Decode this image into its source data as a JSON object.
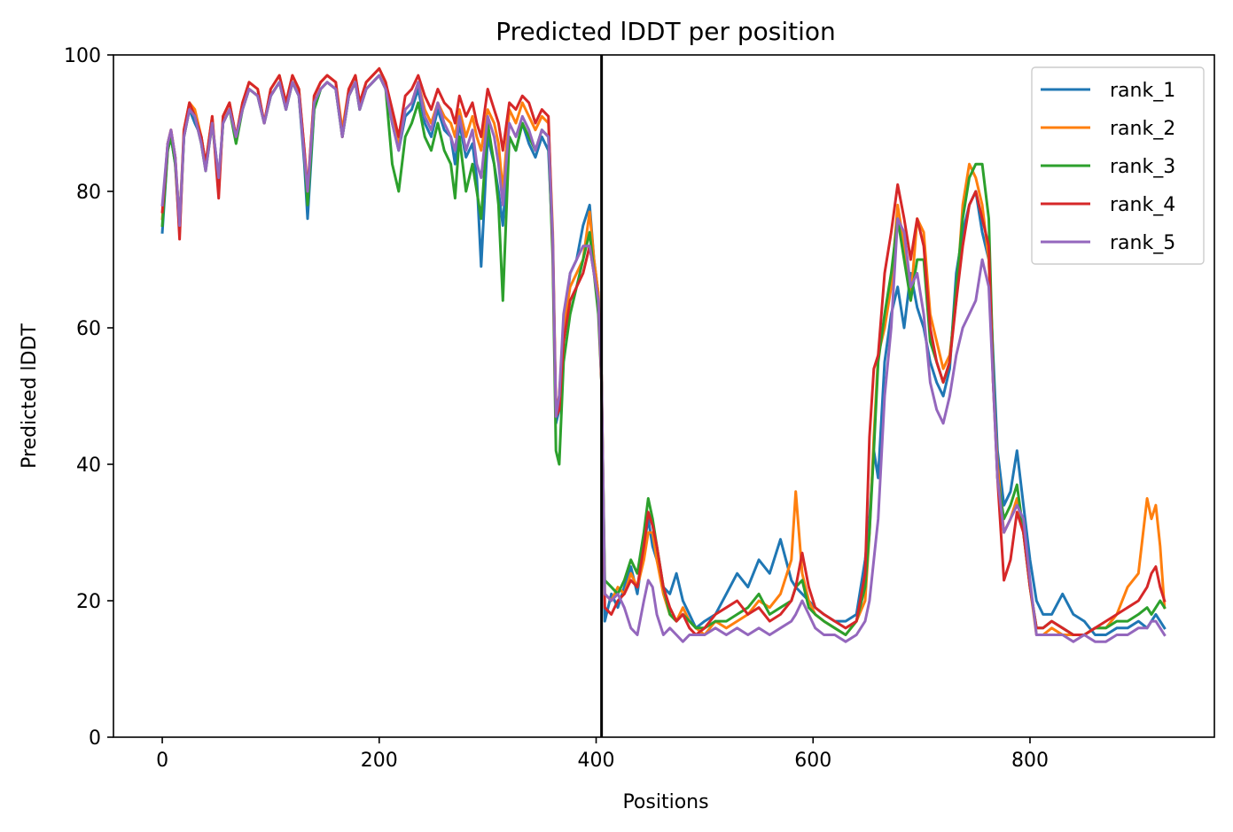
{
  "chart_data": {
    "type": "line",
    "title": "Predicted lDDT per position",
    "xlabel": "Positions",
    "ylabel": "Predicted lDDT",
    "xlim": [
      -45,
      970
    ],
    "ylim": [
      0,
      100
    ],
    "x_ticks": [
      0,
      200,
      400,
      600,
      800
    ],
    "y_ticks": [
      0,
      20,
      40,
      60,
      80,
      100
    ],
    "grid": false,
    "legend_position": "top-right",
    "vertical_line_x": 405,
    "colors": [
      "#1f77b4",
      "#ff7f0e",
      "#2ca02c",
      "#d62728",
      "#9467bd"
    ],
    "x": [
      0,
      5,
      8,
      12,
      16,
      20,
      25,
      30,
      36,
      40,
      46,
      52,
      56,
      62,
      68,
      74,
      80,
      88,
      94,
      100,
      108,
      114,
      120,
      126,
      131,
      134,
      140,
      146,
      152,
      160,
      166,
      172,
      178,
      182,
      188,
      194,
      200,
      206,
      212,
      218,
      224,
      230,
      236,
      242,
      248,
      254,
      260,
      266,
      270,
      274,
      280,
      286,
      290,
      294,
      300,
      306,
      310,
      314,
      320,
      326,
      332,
      338,
      344,
      350,
      356,
      360,
      363,
      366,
      370,
      376,
      382,
      388,
      394,
      398,
      402,
      405,
      408,
      414,
      420,
      426,
      432,
      438,
      444,
      448,
      452,
      456,
      462,
      468,
      474,
      480,
      486,
      492,
      500,
      510,
      520,
      530,
      540,
      550,
      560,
      570,
      580,
      584,
      590,
      596,
      602,
      610,
      620,
      630,
      640,
      648,
      652,
      656,
      660,
      666,
      672,
      678,
      684,
      690,
      696,
      702,
      708,
      714,
      720,
      726,
      732,
      738,
      744,
      750,
      756,
      762,
      766,
      770,
      776,
      782,
      788,
      794,
      800,
      806,
      812,
      820,
      830,
      840,
      850,
      860,
      870,
      880,
      890,
      900,
      908,
      912,
      916,
      920,
      924
    ],
    "series": [
      {
        "name": "rank_1",
        "values": [
          74,
          86,
          88,
          84,
          76,
          88,
          92,
          90,
          88,
          84,
          90,
          82,
          90,
          92,
          88,
          92,
          95,
          94,
          90,
          94,
          96,
          92,
          96,
          94,
          84,
          76,
          92,
          95,
          96,
          95,
          88,
          94,
          96,
          92,
          95,
          96,
          97,
          95,
          90,
          86,
          91,
          92,
          95,
          90,
          88,
          92,
          89,
          88,
          84,
          90,
          85,
          87,
          82,
          69,
          88,
          84,
          80,
          75,
          88,
          86,
          90,
          87,
          85,
          88,
          86,
          72,
          46,
          48,
          60,
          68,
          70,
          75,
          78,
          70,
          65,
          52,
          17,
          21,
          19,
          22,
          25,
          21,
          28,
          32,
          28,
          26,
          22,
          21,
          24,
          20,
          18,
          16,
          17,
          18,
          21,
          24,
          22,
          26,
          24,
          29,
          23,
          22,
          21,
          20,
          19,
          18,
          17,
          17,
          18,
          26,
          32,
          42,
          38,
          55,
          62,
          66,
          60,
          68,
          63,
          60,
          55,
          52,
          50,
          54,
          68,
          74,
          78,
          80,
          74,
          70,
          56,
          42,
          34,
          36,
          42,
          34,
          26,
          20,
          18,
          18,
          21,
          18,
          17,
          15,
          15,
          16,
          16,
          17,
          16,
          17,
          18,
          17,
          16
        ]
      },
      {
        "name": "rank_2",
        "values": [
          76,
          87,
          89,
          85,
          75,
          89,
          93,
          92,
          88,
          84,
          91,
          80,
          91,
          93,
          88,
          93,
          96,
          95,
          90,
          95,
          97,
          93,
          97,
          95,
          86,
          80,
          94,
          96,
          97,
          96,
          89,
          95,
          97,
          93,
          96,
          97,
          98,
          96,
          91,
          87,
          92,
          93,
          96,
          92,
          90,
          93,
          91,
          90,
          88,
          92,
          88,
          91,
          88,
          86,
          92,
          90,
          87,
          80,
          92,
          90,
          93,
          91,
          89,
          91,
          90,
          74,
          48,
          50,
          60,
          66,
          68,
          70,
          77,
          70,
          65,
          53,
          21,
          20,
          22,
          21,
          24,
          22,
          26,
          30,
          30,
          26,
          21,
          18,
          17,
          19,
          17,
          16,
          15,
          17,
          16,
          17,
          18,
          20,
          19,
          21,
          26,
          36,
          24,
          20,
          18,
          17,
          16,
          15,
          17,
          20,
          30,
          44,
          56,
          60,
          66,
          78,
          72,
          64,
          76,
          74,
          62,
          58,
          54,
          56,
          64,
          78,
          84,
          82,
          78,
          70,
          52,
          40,
          30,
          32,
          35,
          30,
          22,
          15,
          15,
          16,
          15,
          15,
          15,
          16,
          16,
          18,
          22,
          24,
          35,
          32,
          34,
          28,
          19
        ]
      },
      {
        "name": "rank_3",
        "values": [
          75,
          86,
          88,
          84,
          74,
          88,
          92,
          91,
          87,
          83,
          90,
          81,
          90,
          92,
          87,
          92,
          95,
          94,
          90,
          94,
          96,
          92,
          96,
          94,
          85,
          78,
          92,
          95,
          96,
          95,
          88,
          94,
          96,
          92,
          95,
          96,
          97,
          95,
          84,
          80,
          88,
          90,
          93,
          88,
          86,
          90,
          86,
          84,
          79,
          88,
          80,
          84,
          80,
          76,
          90,
          84,
          78,
          64,
          88,
          86,
          90,
          88,
          86,
          89,
          88,
          70,
          42,
          40,
          55,
          62,
          66,
          70,
          74,
          68,
          62,
          52,
          23,
          22,
          21,
          23,
          26,
          24,
          30,
          35,
          32,
          28,
          22,
          18,
          17,
          18,
          17,
          16,
          16,
          17,
          17,
          18,
          19,
          21,
          18,
          19,
          20,
          22,
          23,
          19,
          18,
          17,
          16,
          15,
          17,
          22,
          30,
          42,
          55,
          62,
          68,
          76,
          70,
          64,
          70,
          70,
          58,
          55,
          52,
          55,
          66,
          76,
          82,
          84,
          84,
          76,
          54,
          38,
          32,
          34,
          37,
          30,
          22,
          16,
          16,
          17,
          16,
          15,
          15,
          16,
          16,
          17,
          17,
          18,
          19,
          18,
          19,
          20,
          19
        ]
      },
      {
        "name": "rank_4",
        "values": [
          77,
          87,
          89,
          85,
          73,
          89,
          93,
          91,
          88,
          84,
          91,
          79,
          91,
          93,
          88,
          93,
          96,
          95,
          90,
          95,
          97,
          93,
          97,
          95,
          86,
          80,
          94,
          96,
          97,
          96,
          88,
          95,
          97,
          93,
          96,
          97,
          98,
          96,
          92,
          88,
          94,
          95,
          97,
          94,
          92,
          95,
          93,
          92,
          90,
          94,
          91,
          93,
          90,
          88,
          95,
          92,
          90,
          86,
          93,
          92,
          94,
          93,
          90,
          92,
          91,
          72,
          47,
          48,
          58,
          64,
          66,
          68,
          72,
          68,
          64,
          52,
          19,
          18,
          20,
          21,
          23,
          22,
          28,
          33,
          31,
          28,
          22,
          19,
          17,
          18,
          16,
          15,
          16,
          18,
          19,
          20,
          18,
          19,
          17,
          18,
          20,
          22,
          27,
          22,
          19,
          18,
          17,
          16,
          17,
          24,
          44,
          54,
          56,
          68,
          74,
          81,
          76,
          70,
          76,
          72,
          60,
          55,
          52,
          55,
          64,
          72,
          78,
          80,
          76,
          72,
          52,
          38,
          23,
          26,
          33,
          30,
          22,
          16,
          16,
          17,
          16,
          15,
          15,
          16,
          17,
          18,
          19,
          20,
          22,
          24,
          25,
          22,
          20
        ]
      },
      {
        "name": "rank_5",
        "values": [
          78,
          87,
          89,
          85,
          75,
          88,
          92,
          91,
          87,
          83,
          90,
          82,
          90,
          92,
          88,
          92,
          95,
          94,
          90,
          94,
          96,
          92,
          96,
          94,
          85,
          80,
          93,
          95,
          96,
          95,
          88,
          94,
          96,
          92,
          95,
          96,
          97,
          95,
          90,
          86,
          92,
          93,
          96,
          91,
          89,
          93,
          90,
          88,
          86,
          91,
          86,
          89,
          84,
          82,
          91,
          88,
          84,
          78,
          90,
          88,
          91,
          89,
          86,
          89,
          88,
          73,
          47,
          50,
          62,
          68,
          70,
          72,
          72,
          68,
          64,
          53,
          21,
          20,
          21,
          19,
          16,
          15,
          20,
          23,
          22,
          18,
          15,
          16,
          15,
          14,
          15,
          15,
          15,
          16,
          15,
          16,
          15,
          16,
          15,
          16,
          17,
          18,
          20,
          18,
          16,
          15,
          15,
          14,
          15,
          17,
          20,
          26,
          32,
          50,
          60,
          76,
          74,
          66,
          68,
          62,
          52,
          48,
          46,
          50,
          56,
          60,
          62,
          64,
          70,
          66,
          52,
          38,
          30,
          32,
          34,
          32,
          23,
          15,
          15,
          15,
          15,
          14,
          15,
          14,
          14,
          15,
          15,
          16,
          16,
          17,
          17,
          16,
          15
        ]
      }
    ]
  }
}
